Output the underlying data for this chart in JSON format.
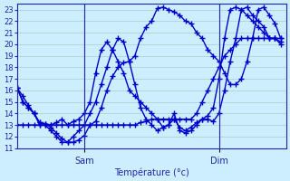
{
  "title": "Température (°c)",
  "background_color": "#cceeff",
  "grid_color": "#aacccc",
  "line_color": "#0000cc",
  "marker": "+",
  "markersize": 4,
  "linewidth": 1.0,
  "ylim": [
    11,
    23.5
  ],
  "yticks": [
    11,
    12,
    13,
    14,
    15,
    16,
    17,
    18,
    19,
    20,
    21,
    22,
    23
  ],
  "xlim": [
    0,
    48
  ],
  "day_labels": [
    [
      "Sam",
      12
    ],
    [
      "Dim",
      36
    ]
  ],
  "series": [
    [
      16.2,
      15.5,
      14.7,
      14.0,
      13.2,
      13.1,
      12.8,
      12.3,
      11.8,
      11.5,
      11.5,
      11.7,
      12.1,
      13.0,
      13.3,
      14.5,
      16.0,
      17.2,
      18.0,
      18.4,
      18.5,
      19.0,
      20.5,
      21.5,
      22.0,
      23.1,
      23.2,
      23.0,
      22.8,
      22.5,
      22.0,
      21.8,
      21.0,
      20.5,
      19.5,
      19.0,
      18.5,
      17.5,
      16.5,
      16.5,
      17.0,
      18.5,
      20.5,
      23.0,
      23.2,
      22.5,
      21.8,
      20.5
    ],
    [
      16.2,
      15.0,
      14.5,
      14.0,
      13.0,
      13.0,
      12.5,
      12.0,
      11.5,
      11.5,
      12.0,
      12.5,
      13.0,
      14.0,
      15.0,
      16.5,
      18.0,
      19.5,
      20.5,
      20.2,
      18.5,
      16.5,
      14.5,
      13.5,
      13.0,
      12.5,
      12.8,
      13.0,
      13.5,
      12.8,
      12.5,
      12.8,
      13.2,
      13.5,
      13.5,
      13.3,
      14.0,
      16.0,
      18.5,
      20.5,
      23.0,
      23.2,
      22.5,
      22.0,
      21.5,
      20.5,
      20.5,
      20.2
    ],
    [
      16.2,
      15.0,
      14.5,
      14.0,
      13.2,
      13.1,
      13.0,
      13.2,
      13.5,
      13.0,
      13.3,
      13.5,
      14.0,
      15.0,
      17.5,
      19.5,
      20.2,
      19.5,
      18.5,
      17.5,
      16.0,
      15.5,
      15.0,
      14.5,
      14.0,
      13.5,
      12.8,
      13.0,
      14.0,
      12.5,
      12.3,
      12.5,
      13.0,
      13.5,
      13.8,
      14.5,
      17.0,
      20.5,
      23.0,
      23.2,
      23.0,
      22.5,
      22.0,
      21.5,
      21.0,
      20.5,
      20.5,
      20.0
    ],
    [
      13.0,
      13.0,
      13.0,
      13.0,
      13.0,
      13.0,
      13.0,
      13.0,
      13.0,
      13.0,
      13.0,
      13.0,
      13.0,
      13.0,
      13.0,
      13.0,
      13.0,
      13.0,
      13.0,
      13.0,
      13.0,
      13.0,
      13.2,
      13.3,
      13.5,
      13.5,
      13.5,
      13.5,
      13.5,
      13.5,
      13.5,
      13.5,
      14.0,
      15.0,
      16.0,
      17.0,
      18.0,
      19.0,
      19.5,
      20.0,
      20.5,
      20.5,
      20.5,
      20.5,
      20.5,
      20.5,
      20.5,
      20.5
    ]
  ]
}
